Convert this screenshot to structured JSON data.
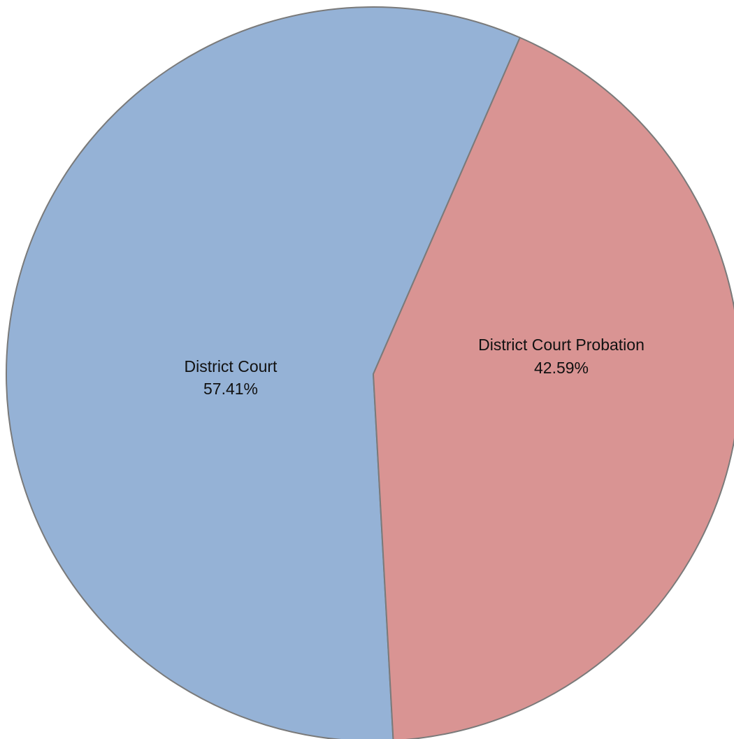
{
  "chart_data": {
    "type": "pie",
    "title": "",
    "slices": [
      {
        "name": "District Court",
        "label": "District Court",
        "percent_label": "57.41%",
        "value": 57.41,
        "color": "#95b2d6"
      },
      {
        "name": "District Court Probation",
        "label": "District Court Probation",
        "percent_label": "42.59%",
        "value": 42.59,
        "color": "#d99493"
      }
    ],
    "stroke_color": "#7a7a7a",
    "legend": "none"
  }
}
